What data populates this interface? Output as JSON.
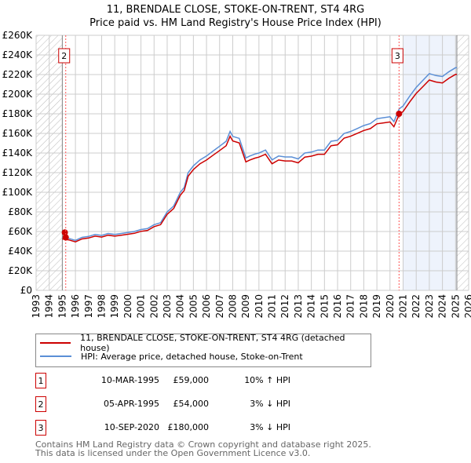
{
  "chart_data": {
    "type": "line",
    "title": "11, BRENDALE CLOSE, STOKE-ON-TRENT, ST4 4RG",
    "subtitle": "Price paid vs. HM Land Registry's House Price Index (HPI)",
    "xlim": [
      1993,
      2026
    ],
    "ylim": [
      0,
      260000
    ],
    "x_ticks": [
      "1993",
      "1994",
      "1995",
      "1996",
      "1997",
      "1998",
      "1999",
      "2000",
      "2001",
      "2002",
      "2003",
      "2004",
      "2005",
      "2006",
      "2007",
      "2008",
      "2009",
      "2010",
      "2011",
      "2012",
      "2013",
      "2014",
      "2015",
      "2016",
      "2017",
      "2018",
      "2019",
      "2020",
      "2021",
      "2022",
      "2023",
      "2024",
      "2025",
      "2026"
    ],
    "y_ticks": [
      "£0",
      "£20K",
      "£40K",
      "£60K",
      "£80K",
      "£100K",
      "£120K",
      "£140K",
      "£160K",
      "£180K",
      "£200K",
      "£220K",
      "£240K",
      "£260K"
    ],
    "grid": true,
    "hpi_x": [
      1995.0,
      1995.5,
      1996,
      1996.5,
      1997,
      1997.5,
      1998,
      1998.5,
      1999,
      1999.5,
      2000,
      2000.5,
      2001,
      2001.5,
      2002,
      2002.5,
      2003,
      2003.5,
      2004,
      2004.3,
      2004.6,
      2005,
      2005.5,
      2006,
      2006.5,
      2007,
      2007.5,
      2007.8,
      2008,
      2008.5,
      2009,
      2009.3,
      2009.7,
      2010,
      2010.5,
      2011,
      2011.5,
      2012,
      2012.5,
      2013,
      2013.5,
      2014,
      2014.5,
      2015,
      2015.5,
      2016,
      2016.5,
      2017,
      2017.5,
      2018,
      2018.5,
      2019,
      2019.5,
      2020,
      2020.3,
      2020.7,
      2021,
      2021.5,
      2022,
      2022.5,
      2023,
      2023.5,
      2024,
      2024.5,
      2025,
      2025.1
    ],
    "hpi_y": [
      54000,
      53000,
      51000,
      54000,
      55000,
      57000,
      56000,
      58000,
      57000,
      58000,
      59000,
      60000,
      62000,
      63000,
      67000,
      69000,
      80000,
      86000,
      100000,
      105000,
      120000,
      127000,
      133000,
      137000,
      142000,
      147000,
      152000,
      162000,
      157000,
      155000,
      135000,
      137000,
      139000,
      140000,
      143000,
      133000,
      137000,
      136000,
      136000,
      134000,
      140000,
      141000,
      143000,
      143000,
      152000,
      153000,
      160000,
      162000,
      165000,
      168000,
      170000,
      175000,
      176000,
      177000,
      172000,
      185000,
      188000,
      198000,
      207000,
      214000,
      221000,
      219000,
      218000,
      223000,
      227000,
      227000
    ],
    "series": [
      {
        "name": "11, BRENDALE CLOSE, STOKE-ON-TRENT, ST4 4RG (detached house)",
        "color": "#cc0000",
        "ratio": 0.97
      },
      {
        "name": "HPI: Average price, detached house, Stoke-on-Trent",
        "color": "#5b8fd6"
      }
    ],
    "sales": [
      {
        "id": "1",
        "date": "10-MAR-1995",
        "x": 1995.19,
        "price": "£59,000",
        "value": 59000,
        "hpi": "10% ↑ HPI"
      },
      {
        "id": "2",
        "date": "05-APR-1995",
        "x": 1995.26,
        "price": "£54,000",
        "value": 54000,
        "hpi": "3% ↓ HPI"
      },
      {
        "id": "3",
        "date": "10-SEP-2020",
        "x": 2020.69,
        "price": "£180,000",
        "value": 180000,
        "hpi": "3% ↓ HPI"
      }
    ],
    "labeled_markers": [
      "2",
      "3"
    ],
    "shaded_range": [
      2021,
      2025.1
    ],
    "hatched_before": 1995,
    "hatched_after": 2025.1
  },
  "footer": [
    "Contains HM Land Registry data © Crown copyright and database right 2025.",
    "This data is licensed under the Open Government Licence v3.0."
  ]
}
